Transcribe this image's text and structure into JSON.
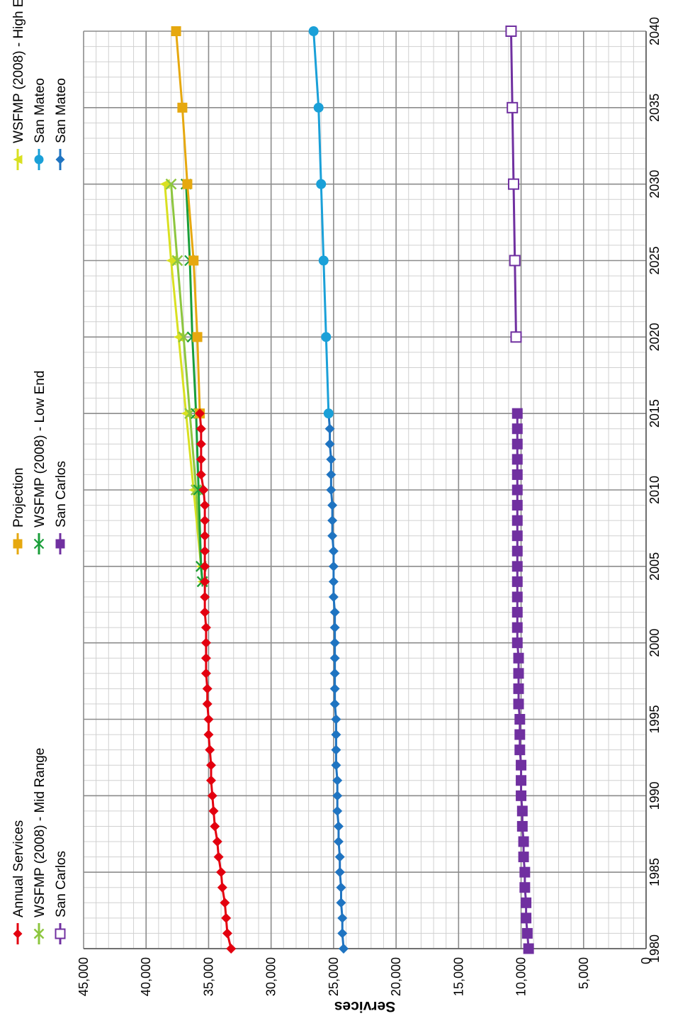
{
  "chart_data": {
    "type": "line",
    "title": "",
    "subtitle": "",
    "ylabel": "Services",
    "xlabel": "",
    "xlim": [
      1980,
      2040
    ],
    "ylim": [
      0,
      45000
    ],
    "x_ticks": [
      1980,
      1985,
      1990,
      1995,
      2000,
      2005,
      2010,
      2015,
      2020,
      2025,
      2030,
      2035,
      2040
    ],
    "y_ticks": [
      0,
      5000,
      10000,
      15000,
      20000,
      25000,
      30000,
      35000,
      40000,
      45000
    ],
    "y_tick_labels": [
      "0",
      "5,000",
      "10,000",
      "15,000",
      "20,000",
      "25,000",
      "30,000",
      "35,000",
      "40,000",
      "45,000"
    ],
    "grid": true,
    "orientation": "rotated 90 degrees clockwise",
    "legend_position": "top",
    "series": [
      {
        "name": "Annual Services",
        "color": "#e3000f",
        "marker": "diamond",
        "x": [
          1980,
          1981,
          1982,
          1983,
          1984,
          1985,
          1986,
          1987,
          1988,
          1989,
          1990,
          1991,
          1992,
          1993,
          1994,
          1995,
          1996,
          1997,
          1998,
          1999,
          2000,
          2001,
          2002,
          2003,
          2004,
          2005,
          2006,
          2007,
          2008,
          2009,
          2010,
          2011,
          2012,
          2013,
          2014,
          2015
        ],
        "y": [
          33200,
          33500,
          33600,
          33700,
          33900,
          34000,
          34200,
          34300,
          34500,
          34600,
          34700,
          34800,
          34800,
          34900,
          35000,
          35000,
          35100,
          35100,
          35200,
          35200,
          35200,
          35200,
          35300,
          35300,
          35300,
          35300,
          35300,
          35300,
          35300,
          35300,
          35400,
          35600,
          35600,
          35600,
          35600,
          35700
        ]
      },
      {
        "name": "Projection",
        "color": "#e6a80f",
        "marker": "square",
        "x": [
          2015,
          2020,
          2025,
          2030,
          2035,
          2040
        ],
        "y": [
          35700,
          35900,
          36200,
          36700,
          37100,
          37600
        ]
      },
      {
        "name": "WSFMP (2008) - High End",
        "color": "#d9e021",
        "marker": "triangle",
        "x": [
          2004,
          2005,
          2010,
          2015,
          2020,
          2025,
          2030
        ],
        "y": [
          35500,
          35600,
          36200,
          36800,
          37400,
          38000,
          38500
        ]
      },
      {
        "name": "WSFMP (2008) - Mid Range",
        "color": "#8dc63f",
        "marker": "x",
        "x": [
          2004,
          2005,
          2010,
          2015,
          2020,
          2025,
          2030
        ],
        "y": [
          35500,
          35600,
          36000,
          36500,
          37000,
          37500,
          38000
        ]
      },
      {
        "name": "WSFMP (2008) - Low End",
        "color": "#1a9e3a",
        "marker": "asterisk",
        "x": [
          2004,
          2005,
          2010,
          2015,
          2020,
          2025,
          2030
        ],
        "y": [
          35500,
          35600,
          35800,
          36000,
          36300,
          36500,
          36800
        ]
      },
      {
        "name": "San Mateo",
        "color": "#1aa0d8",
        "marker": "circle",
        "x": [
          2015,
          2020,
          2025,
          2030,
          2035,
          2040
        ],
        "y": [
          25400,
          25600,
          25800,
          26000,
          26200,
          26600
        ]
      },
      {
        "name": "San Mateo",
        "color": "#1f74c1",
        "marker": "diamond",
        "x": [
          1980,
          1981,
          1982,
          1983,
          1984,
          1985,
          1986,
          1987,
          1988,
          1989,
          1990,
          1991,
          1992,
          1993,
          1994,
          1995,
          1996,
          1997,
          1998,
          1999,
          2000,
          2001,
          2002,
          2003,
          2004,
          2005,
          2006,
          2007,
          2008,
          2009,
          2010,
          2011,
          2012,
          2013,
          2014,
          2015
        ],
        "y": [
          24200,
          24300,
          24300,
          24400,
          24400,
          24500,
          24500,
          24600,
          24600,
          24700,
          24700,
          24700,
          24800,
          24800,
          24800,
          24800,
          24900,
          24900,
          24900,
          24900,
          24900,
          24900,
          24900,
          25000,
          25000,
          25000,
          25000,
          25100,
          25100,
          25100,
          25200,
          25200,
          25200,
          25300,
          25300,
          25400
        ]
      },
      {
        "name": "San Carlos",
        "color": "#7030a0",
        "marker": "square",
        "x": [
          1980,
          1981,
          1982,
          1983,
          1984,
          1985,
          1986,
          1987,
          1988,
          1989,
          1990,
          1991,
          1992,
          1993,
          1994,
          1995,
          1996,
          1997,
          1998,
          1999,
          2000,
          2001,
          2002,
          2003,
          2004,
          2005,
          2006,
          2007,
          2008,
          2009,
          2010,
          2011,
          2012,
          2013,
          2014,
          2015
        ],
        "y": [
          9400,
          9500,
          9600,
          9600,
          9700,
          9700,
          9800,
          9800,
          9900,
          9900,
          10000,
          10000,
          10000,
          10100,
          10100,
          10100,
          10200,
          10200,
          10200,
          10200,
          10300,
          10300,
          10300,
          10300,
          10300,
          10300,
          10300,
          10300,
          10300,
          10300,
          10300,
          10300,
          10300,
          10300,
          10300,
          10300
        ]
      },
      {
        "name": "San Carlos",
        "color": "#7030a0",
        "marker": "open-square",
        "x": [
          2020,
          2025,
          2030,
          2035,
          2040
        ],
        "y": [
          10400,
          10500,
          10600,
          10700,
          10800
        ]
      }
    ],
    "legend": [
      {
        "label": "Annual Services",
        "color": "#e3000f",
        "marker": "diamond"
      },
      {
        "label": "Projection",
        "color": "#e6a80f",
        "marker": "square"
      },
      {
        "label": "WSFMP (2008) - High End",
        "color": "#d9e021",
        "marker": "triangle"
      },
      {
        "label": "WSFMP (2008) - Mid Range",
        "color": "#8dc63f",
        "marker": "x"
      },
      {
        "label": "WSFMP (2008) - Low End",
        "color": "#1a9e3a",
        "marker": "asterisk"
      },
      {
        "label": "San Mateo",
        "color": "#1aa0d8",
        "marker": "circle"
      },
      {
        "label": "San Carlos",
        "color": "#7030a0",
        "marker": "open-square"
      },
      {
        "label": "San Carlos",
        "color": "#7030a0",
        "marker": "square"
      },
      {
        "label": "San Mateo",
        "color": "#1f74c1",
        "marker": "diamond"
      }
    ]
  }
}
